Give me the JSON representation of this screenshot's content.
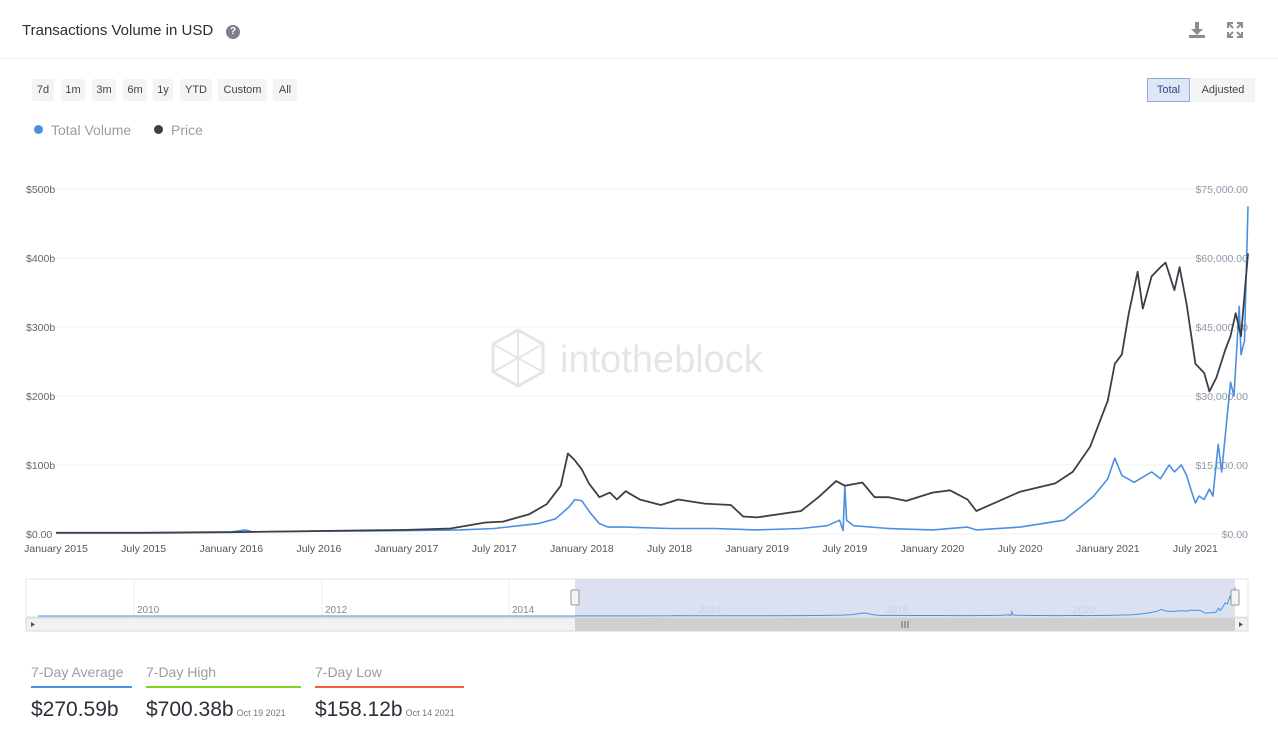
{
  "header": {
    "title": "Transactions Volume in USD",
    "help_icon": "help-circle-icon",
    "download_icon": "download-icon",
    "expand_icon": "fullscreen-icon"
  },
  "range_buttons": [
    "7d",
    "1m",
    "3m",
    "6m",
    "1y",
    "YTD",
    "Custom",
    "All"
  ],
  "mode_buttons": {
    "total": "Total",
    "adjusted": "Adjusted",
    "active": "Total"
  },
  "legend": [
    {
      "name": "Total Volume",
      "color": "#4a90e2"
    },
    {
      "name": "Price",
      "color": "#3d3f46"
    }
  ],
  "watermark": "intotheblock",
  "stats": {
    "avg": {
      "label": "7-Day Average",
      "value": "$270.59b",
      "color": "#4a90e2"
    },
    "high": {
      "label": "7-Day High",
      "value": "$700.38b",
      "date": "Oct 19 2021",
      "color": "#7ed321"
    },
    "low": {
      "label": "7-Day Low",
      "value": "$158.12b",
      "date": "Oct 14 2021",
      "color": "#f0623a"
    }
  },
  "chart_data": {
    "type": "line",
    "x_ticks": [
      "January 2015",
      "July 2015",
      "January 2016",
      "July 2016",
      "January 2017",
      "July 2017",
      "January 2018",
      "July 2018",
      "January 2019",
      "July 2019",
      "January 2020",
      "July 2020",
      "January 2021",
      "July 2021"
    ],
    "y_left": {
      "unit": "USD",
      "ticks": [
        "$0.00",
        "$100b",
        "$200b",
        "$300b",
        "$400b",
        "$500b"
      ],
      "ylim": [
        0,
        500
      ]
    },
    "y_right": {
      "ticks": [
        "$0.00",
        "$15,000.00",
        "$30,000.00",
        "$45,000.00",
        "$60,000.00",
        "$75,000.00"
      ],
      "ylim": [
        0,
        75000
      ]
    },
    "xlim": [
      2015.0,
      2021.8
    ],
    "series": [
      {
        "name": "Total Volume",
        "axis": "left",
        "color": "#4a90e2",
        "x": [
          2015.0,
          2015.5,
          2016.0,
          2016.08,
          2016.12,
          2016.5,
          2017.0,
          2017.3,
          2017.5,
          2017.75,
          2017.85,
          2017.93,
          2017.96,
          2018.0,
          2018.05,
          2018.1,
          2018.15,
          2018.25,
          2018.5,
          2018.75,
          2019.0,
          2019.25,
          2019.4,
          2019.47,
          2019.49,
          2019.5,
          2019.51,
          2019.55,
          2019.75,
          2020.0,
          2020.2,
          2020.25,
          2020.5,
          2020.75,
          2020.85,
          2020.92,
          2021.0,
          2021.04,
          2021.08,
          2021.15,
          2021.25,
          2021.3,
          2021.35,
          2021.38,
          2021.42,
          2021.45,
          2021.48,
          2021.5,
          2021.52,
          2021.55,
          2021.58,
          2021.6,
          2021.63,
          2021.65,
          2021.7,
          2021.72,
          2021.75,
          2021.76,
          2021.78,
          2021.8
        ],
        "values": [
          2,
          2,
          3,
          6,
          3,
          4,
          5,
          6,
          8,
          15,
          22,
          40,
          50,
          48,
          30,
          15,
          10,
          10,
          8,
          8,
          6,
          8,
          12,
          20,
          5,
          70,
          20,
          12,
          8,
          6,
          10,
          6,
          10,
          20,
          40,
          55,
          80,
          110,
          85,
          75,
          90,
          80,
          100,
          90,
          100,
          85,
          60,
          45,
          55,
          50,
          65,
          55,
          130,
          90,
          220,
          200,
          330,
          260,
          280,
          475
        ]
      },
      {
        "name": "Price",
        "axis": "right",
        "color": "#3d3f46",
        "x": [
          2015.0,
          2015.5,
          2016.0,
          2016.5,
          2017.0,
          2017.25,
          2017.45,
          2017.55,
          2017.7,
          2017.8,
          2017.88,
          2017.92,
          2017.96,
          2018.0,
          2018.04,
          2018.1,
          2018.16,
          2018.2,
          2018.25,
          2018.33,
          2018.45,
          2018.55,
          2018.7,
          2018.85,
          2018.92,
          2019.0,
          2019.25,
          2019.35,
          2019.45,
          2019.5,
          2019.6,
          2019.67,
          2019.75,
          2019.85,
          2020.0,
          2020.1,
          2020.2,
          2020.25,
          2020.5,
          2020.7,
          2020.8,
          2020.9,
          2021.0,
          2021.04,
          2021.08,
          2021.12,
          2021.17,
          2021.2,
          2021.25,
          2021.3,
          2021.33,
          2021.38,
          2021.41,
          2021.45,
          2021.5,
          2021.55,
          2021.58,
          2021.62,
          2021.67,
          2021.7,
          2021.73,
          2021.76,
          2021.8
        ],
        "values": [
          250,
          250,
          400,
          650,
          900,
          1200,
          2500,
          2700,
          4300,
          6500,
          10500,
          17500,
          16000,
          14000,
          11000,
          8000,
          9000,
          7500,
          9300,
          7500,
          6300,
          7500,
          6600,
          6300,
          3800,
          3600,
          5000,
          8000,
          11500,
          10500,
          11200,
          8000,
          8000,
          7200,
          9000,
          9500,
          7500,
          5000,
          9200,
          11000,
          13500,
          19000,
          29000,
          37000,
          39000,
          48000,
          57000,
          49000,
          56000,
          58000,
          59000,
          53000,
          58000,
          50000,
          37000,
          35000,
          31000,
          34000,
          40000,
          43000,
          48000,
          43000,
          61000
        ]
      }
    ],
    "navigator": {
      "x_ticks": [
        "2010",
        "2012",
        "2014",
        "2016",
        "2018",
        "2020"
      ]
    }
  }
}
